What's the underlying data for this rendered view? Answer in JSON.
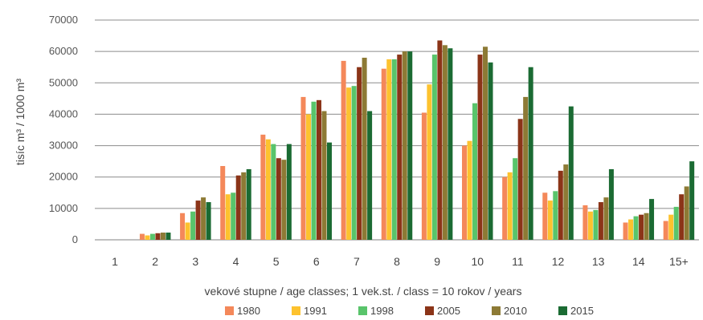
{
  "chart_data": {
    "type": "bar",
    "title": "",
    "xlabel": "vekové stupne / age classes; 1 vek.st. / class = 10 rokov / years",
    "ylabel": "tisíc m³ / 1000 m³",
    "ylim": [
      0,
      70000
    ],
    "yticks": [
      0,
      10000,
      20000,
      30000,
      40000,
      50000,
      60000,
      70000
    ],
    "grid": true,
    "legend": "bottom",
    "categories": [
      "1",
      "2",
      "3",
      "4",
      "5",
      "6",
      "7",
      "8",
      "9",
      "10",
      "11",
      "12",
      "13",
      "14",
      "15+"
    ],
    "series": [
      {
        "name": "1980",
        "color": "#f4885a",
        "values": [
          0,
          1900,
          8500,
          23500,
          33500,
          45500,
          57000,
          54500,
          40500,
          30000,
          20000,
          15000,
          11000,
          5500,
          6000
        ]
      },
      {
        "name": "1991",
        "color": "#fdc22e",
        "values": [
          0,
          1400,
          5500,
          14500,
          32000,
          40000,
          48500,
          57500,
          49500,
          31500,
          21500,
          12500,
          9000,
          6500,
          8000
        ]
      },
      {
        "name": "1998",
        "color": "#59c46b",
        "values": [
          0,
          1900,
          9000,
          15000,
          30500,
          44000,
          49000,
          57500,
          59000,
          43500,
          26000,
          15500,
          9500,
          7500,
          10500
        ]
      },
      {
        "name": "2005",
        "color": "#8b3418",
        "values": [
          0,
          2100,
          12500,
          20500,
          26000,
          44500,
          55000,
          59000,
          63500,
          59000,
          38500,
          22000,
          12000,
          8000,
          14500
        ]
      },
      {
        "name": "2010",
        "color": "#8d7a35",
        "values": [
          0,
          2300,
          13500,
          21500,
          25500,
          41000,
          58000,
          60000,
          62000,
          61500,
          45500,
          24000,
          13500,
          8500,
          17000
        ]
      },
      {
        "name": "2015",
        "color": "#1b6b33",
        "values": [
          0,
          2300,
          12000,
          22500,
          30500,
          31000,
          41000,
          60000,
          61000,
          56500,
          55000,
          42500,
          22500,
          13000,
          25000
        ]
      }
    ]
  }
}
